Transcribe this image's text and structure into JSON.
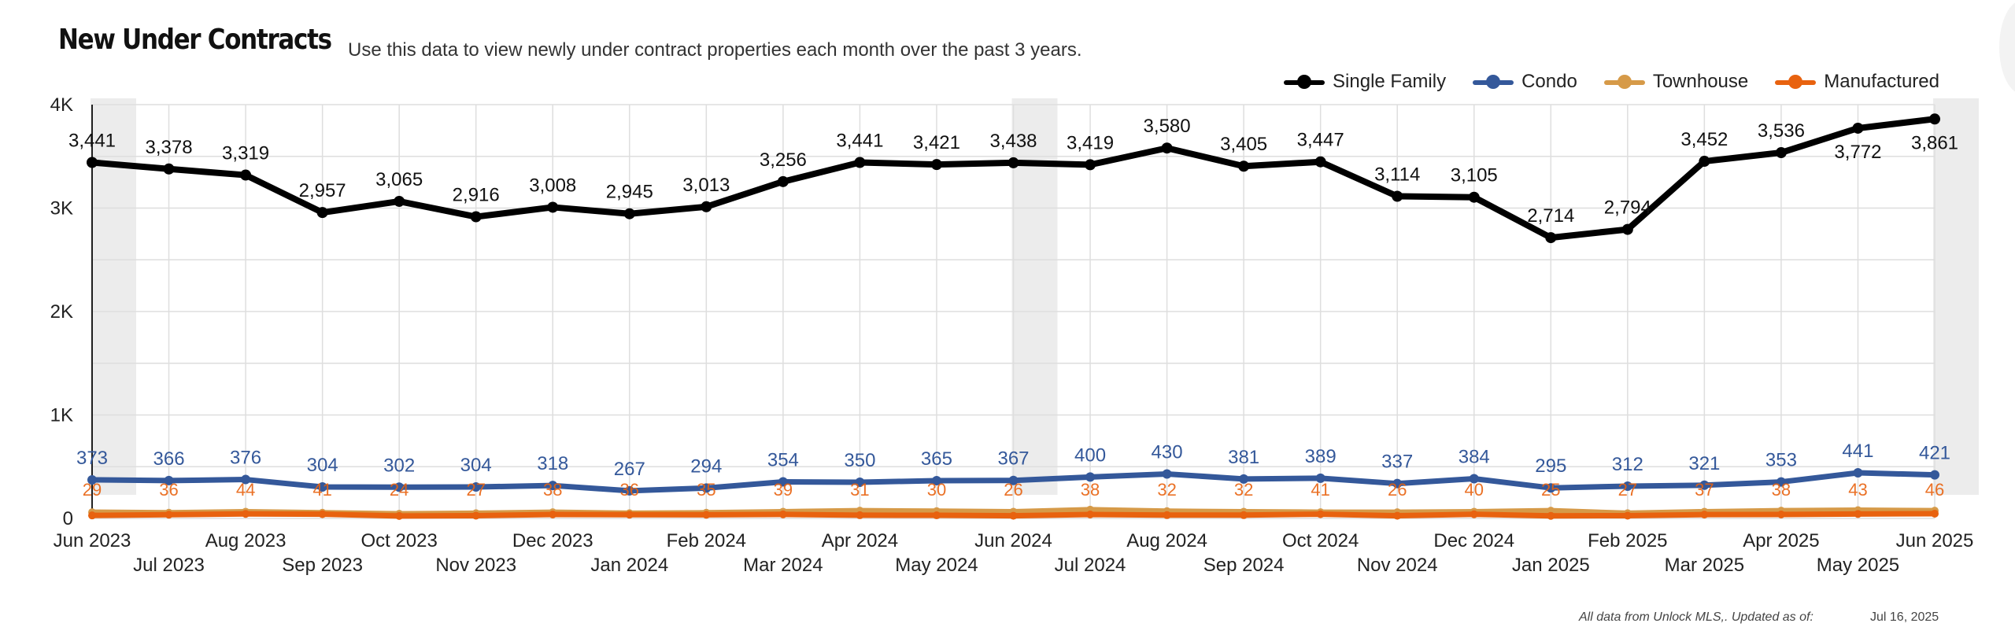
{
  "header": {
    "title": "New Under Contracts",
    "subtitle": "Use this data to view newly under contract properties each month over the past 3 years."
  },
  "footer": {
    "note": "All data from Unlock MLS,. Updated as of:",
    "date": "Jul 16, 2025"
  },
  "colors": {
    "single_family": "#000000",
    "condo": "#34589a",
    "townhouse": "#d69a48",
    "manufactured": "#e8620f",
    "grid": "#dedede",
    "highlight_band": "#ececec"
  },
  "chart_data": {
    "type": "line",
    "x": [
      "Jun 2023",
      "Jul 2023",
      "Aug 2023",
      "Sep 2023",
      "Oct 2023",
      "Nov 2023",
      "Dec 2023",
      "Jan 2024",
      "Feb 2024",
      "Mar 2024",
      "Apr 2024",
      "May 2024",
      "Jun 2024",
      "Jul 2024",
      "Aug 2024",
      "Sep 2024",
      "Oct 2024",
      "Nov 2024",
      "Dec 2024",
      "Jan 2025",
      "Feb 2025",
      "Mar 2025",
      "Apr 2025",
      "May 2025",
      "Jun 2025"
    ],
    "ylim": [
      0,
      4000
    ],
    "yticks": [
      0,
      1000,
      2000,
      3000,
      4000
    ],
    "ytick_labels": [
      "0",
      "1K",
      "2K",
      "3K",
      "4K"
    ],
    "highlighted_x": [
      "Jun 2023",
      "Jun 2024",
      "Jun 2025"
    ],
    "grid": true,
    "legend_position": "top-right",
    "series": [
      {
        "name": "Single Family",
        "color": "#000000",
        "values": [
          3441,
          3378,
          3319,
          2957,
          3065,
          2916,
          3008,
          2945,
          3013,
          3256,
          3441,
          3421,
          3438,
          3419,
          3580,
          3405,
          3447,
          3114,
          3105,
          2714,
          2794,
          3452,
          3536,
          3772,
          3861
        ],
        "labels": [
          "3,441",
          "3,378",
          "3,319",
          "2,957",
          "3,065",
          "2,916",
          "3,008",
          "2,945",
          "3,013",
          "3,256",
          "3,441",
          "3,421",
          "3,438",
          "3,419",
          "3,580",
          "3,405",
          "3,447",
          "3,114",
          "3,105",
          "2,714",
          "2,794",
          "3,452",
          "3,536",
          "3,772",
          "3,861"
        ]
      },
      {
        "name": "Condo",
        "color": "#34589a",
        "values": [
          373,
          366,
          376,
          304,
          302,
          304,
          318,
          267,
          294,
          354,
          350,
          365,
          367,
          400,
          430,
          381,
          389,
          337,
          384,
          295,
          312,
          321,
          353,
          441,
          421
        ],
        "labels": [
          "373",
          "366",
          "376",
          "304",
          "302",
          "304",
          "318",
          "267",
          "294",
          "354",
          "350",
          "365",
          "367",
          "400",
          "430",
          "381",
          "389",
          "337",
          "384",
          "295",
          "312",
          "321",
          "353",
          "441",
          "421"
        ]
      },
      {
        "name": "Townhouse",
        "color": "#d69a48",
        "values": [
          60,
          55,
          65,
          55,
          45,
          50,
          60,
          50,
          55,
          65,
          75,
          70,
          65,
          85,
          70,
          65,
          60,
          60,
          65,
          75,
          50,
          65,
          75,
          80,
          75
        ]
      },
      {
        "name": "Manufactured",
        "color": "#e8620f",
        "values": [
          29,
          36,
          44,
          41,
          24,
          27,
          38,
          36,
          35,
          39,
          31,
          30,
          26,
          38,
          32,
          32,
          41,
          26,
          40,
          25,
          27,
          37,
          38,
          43,
          46
        ],
        "labels": [
          "29",
          "36",
          "44",
          "41",
          "24",
          "27",
          "38",
          "36",
          "35",
          "39",
          "31",
          "30",
          "26",
          "38",
          "32",
          "32",
          "41",
          "26",
          "40",
          "25",
          "27",
          "37",
          "38",
          "43",
          "46"
        ]
      }
    ]
  }
}
